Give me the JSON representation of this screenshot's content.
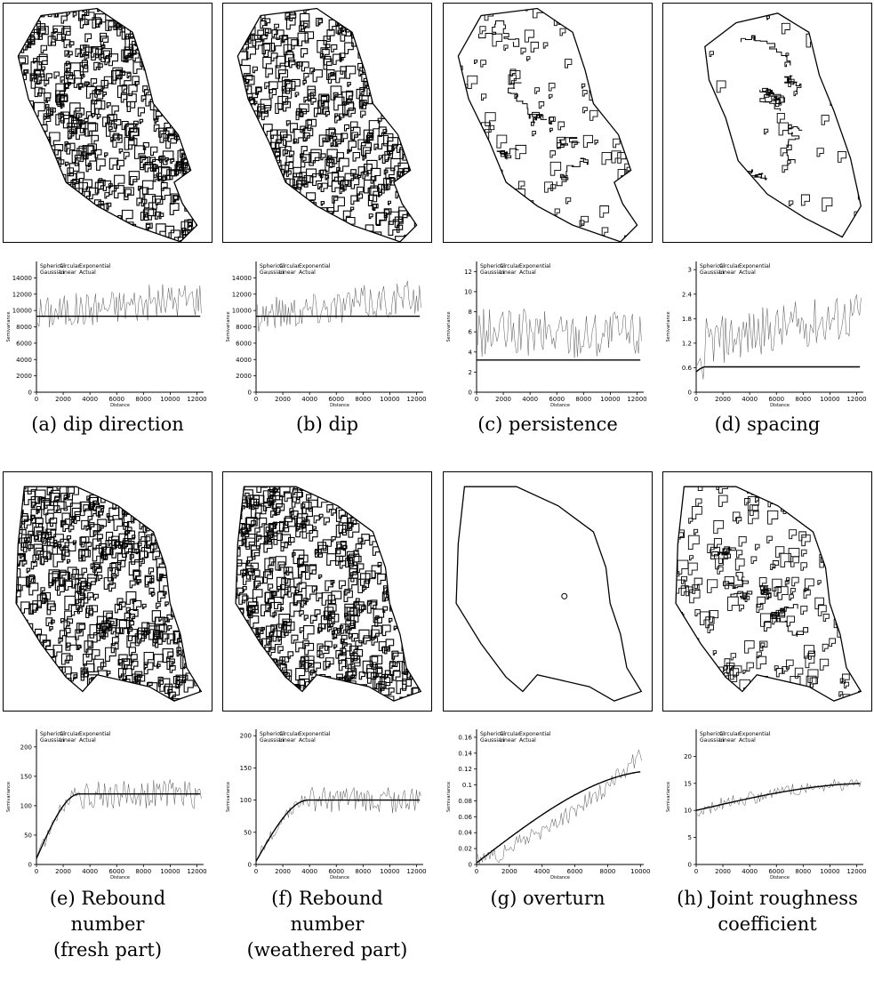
{
  "figure": {
    "panels": [
      {
        "id": "a",
        "caption": "(a) dip direction",
        "map_density": 1.0,
        "map_shape": 0,
        "plot": {
          "type": "line",
          "ylim": [
            0,
            16000
          ],
          "yticks": [
            0,
            2000,
            4000,
            6000,
            8000,
            10000,
            12000,
            14000
          ],
          "ytick_labels": [
            "0",
            "2000",
            "4000",
            "6000",
            "8000",
            "10000",
            "12000",
            "14000"
          ],
          "xlim": [
            0,
            12500
          ],
          "xticks": [
            0,
            2000,
            4000,
            6000,
            8000,
            10000,
            12000
          ],
          "xtick_labels": [
            "0",
            "2000",
            "4000",
            "6000",
            "8000",
            "10000",
            "12000"
          ],
          "model": {
            "kind": "nugget",
            "nugget": 9300,
            "sill": 9300,
            "range": 100
          },
          "experimental_base": 9600,
          "experimental_amp": 2200,
          "experimental_trend": 2000
        }
      },
      {
        "id": "b",
        "caption": "(b) dip",
        "map_density": 0.9,
        "map_shape": 0,
        "plot": {
          "type": "line",
          "ylim": [
            0,
            16000
          ],
          "yticks": [
            0,
            2000,
            4000,
            6000,
            8000,
            10000,
            12000,
            14000
          ],
          "ytick_labels": [
            "0",
            "2000",
            "4000",
            "6000",
            "8000",
            "10000",
            "12000",
            "14000"
          ],
          "xlim": [
            0,
            12500
          ],
          "xticks": [
            0,
            2000,
            4000,
            6000,
            8000,
            10000,
            12000
          ],
          "xtick_labels": [
            "0",
            "2000",
            "4000",
            "6000",
            "8000",
            "10000",
            "12000"
          ],
          "model": {
            "kind": "nugget",
            "nugget": 9300,
            "sill": 9300,
            "range": 100
          },
          "experimental_base": 9600,
          "experimental_amp": 2200,
          "experimental_trend": 2000
        }
      },
      {
        "id": "c",
        "caption": "(c) persistence",
        "map_density": 0.18,
        "map_shape": 0,
        "plot": {
          "type": "line",
          "ylim": [
            0,
            13
          ],
          "yticks": [
            0,
            2,
            4,
            6,
            8,
            10,
            12
          ],
          "ytick_labels": [
            "0",
            "2",
            "4",
            "6",
            "8",
            "10",
            "12"
          ],
          "xlim": [
            0,
            12500
          ],
          "xticks": [
            0,
            2000,
            4000,
            6000,
            8000,
            10000,
            12000
          ],
          "xtick_labels": [
            "0",
            "2000",
            "4000",
            "6000",
            "8000",
            "10000",
            "12000"
          ],
          "model": {
            "kind": "nugget",
            "nugget": 3.2,
            "sill": 3.2,
            "range": 100
          },
          "experimental_base": 5.8,
          "experimental_amp": 2.5,
          "experimental_trend": 0
        }
      },
      {
        "id": "d",
        "caption": "(d) spacing",
        "map_density": 0.08,
        "map_shape": 1,
        "plot": {
          "type": "line",
          "ylim": [
            0,
            3.2
          ],
          "yticks": [
            0,
            0.6,
            1.2,
            1.8,
            2.4,
            3
          ],
          "ytick_labels": [
            "0",
            "0.6",
            "1.2",
            "1.8",
            "2.4",
            "3"
          ],
          "xlim": [
            0,
            12500
          ],
          "xticks": [
            0,
            2000,
            4000,
            6000,
            8000,
            10000,
            12000
          ],
          "xtick_labels": [
            "0",
            "2000",
            "4000",
            "6000",
            "8000",
            "10000",
            "12000"
          ],
          "model": {
            "kind": "spherical",
            "nugget": 0.5,
            "sill": 0.62,
            "range": 700
          },
          "experimental_base": 1.2,
          "experimental_amp": 0.6,
          "experimental_trend": 0.7
        }
      },
      {
        "id": "e",
        "caption": "(e) Rebound\nnumber\n(fresh part)",
        "map_density": 1.1,
        "map_shape": 2,
        "plot": {
          "type": "line",
          "ylim": [
            0,
            230
          ],
          "yticks": [
            0,
            50,
            100,
            150,
            200
          ],
          "ytick_labels": [
            "0",
            "50",
            "100",
            "150",
            "200"
          ],
          "xlim": [
            0,
            12500
          ],
          "xticks": [
            0,
            2000,
            4000,
            6000,
            8000,
            10000,
            12000
          ],
          "xtick_labels": [
            "0",
            "2000",
            "4000",
            "6000",
            "8000",
            "10000",
            "12000"
          ],
          "model": {
            "kind": "spherical",
            "nugget": 10,
            "sill": 120,
            "range": 3200
          },
          "experimental_base": 120,
          "experimental_amp": 25,
          "experimental_trend": 0
        }
      },
      {
        "id": "f",
        "caption": "(f) Rebound\nnumber\n(weathered part)",
        "map_density": 1.0,
        "map_shape": 2,
        "plot": {
          "type": "line",
          "ylim": [
            0,
            210
          ],
          "yticks": [
            0,
            50,
            100,
            150,
            200
          ],
          "ytick_labels": [
            "0",
            "50",
            "100",
            "150",
            "200"
          ],
          "xlim": [
            0,
            12500
          ],
          "xticks": [
            0,
            2000,
            4000,
            6000,
            8000,
            10000,
            12000
          ],
          "xtick_labels": [
            "0",
            "2000",
            "4000",
            "6000",
            "8000",
            "10000",
            "12000"
          ],
          "model": {
            "kind": "spherical",
            "nugget": 5,
            "sill": 100,
            "range": 3900
          },
          "experimental_base": 100,
          "experimental_amp": 20,
          "experimental_trend": 0
        }
      },
      {
        "id": "g",
        "caption": "(g) overturn",
        "map_density": 0.0,
        "map_shape": 2,
        "plot": {
          "type": "line",
          "ylim": [
            0,
            0.17
          ],
          "yticks": [
            0,
            0.02,
            0.04,
            0.06,
            0.08,
            0.1,
            0.12,
            0.14,
            0.16
          ],
          "ytick_labels": [
            "0",
            "0.02",
            "0.04",
            "0.06",
            "0.08",
            "0.1",
            "0.12",
            "0.14",
            "0.16"
          ],
          "xlim": [
            0,
            10200
          ],
          "xticks": [
            0,
            2000,
            4000,
            6000,
            8000,
            10000
          ],
          "xtick_labels": [
            "0",
            "2000",
            "4000",
            "6000",
            "8000",
            "10000"
          ],
          "model": {
            "kind": "spherical",
            "nugget": 0.002,
            "sill": 0.118,
            "range": 11000
          },
          "experimental_base": 0.0,
          "experimental_amp": 0.012,
          "experimental_trend": 0.13
        }
      },
      {
        "id": "h",
        "caption": "(h) Joint roughness\ncoefficient",
        "map_density": 0.3,
        "map_shape": 2,
        "plot": {
          "type": "line",
          "ylim": [
            0,
            25
          ],
          "yticks": [
            0,
            5,
            10,
            15,
            20
          ],
          "ytick_labels": [
            "0",
            "5",
            "10",
            "15",
            "20"
          ],
          "xlim": [
            0,
            12500
          ],
          "xticks": [
            0,
            2000,
            4000,
            6000,
            8000,
            10000,
            12000
          ],
          "xtick_labels": [
            "0",
            "2000",
            "4000",
            "6000",
            "8000",
            "10000",
            "12000"
          ],
          "model": {
            "kind": "spherical",
            "nugget": 10,
            "sill": 15,
            "range": 13000
          },
          "experimental_base": 11,
          "experimental_amp": 2.5,
          "experimental_trend": 5
        }
      }
    ],
    "legend": {
      "row1": [
        "Spherical",
        "Circular",
        "Exponential"
      ],
      "row2": [
        "Gaussian",
        "Linear",
        "Actual"
      ]
    },
    "axis_labels": {
      "x": "Distance",
      "y": "Semivariance"
    }
  }
}
